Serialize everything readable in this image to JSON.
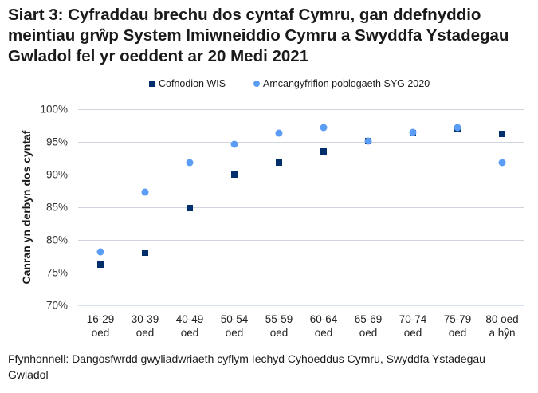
{
  "title": "Siart 3: Cyfraddau brechu dos cyntaf Cymru, gan ddefnyddio meintiau grŵp System Imiwneiddio Cymru a Swyddfa Ystadegau Gwladol fel yr oeddent ar 20 Medi 2021",
  "legend": {
    "series1": "Cofnodion WIS",
    "series2": "Amcangyfrifion poblogaeth SYG 2020"
  },
  "yaxis": {
    "label": "Canran yn derbyn dos cyntaf",
    "ticks": [
      "100%",
      "95%",
      "90%",
      "85%",
      "80%",
      "75%",
      "70%"
    ]
  },
  "xaxis": {
    "ticks": [
      {
        "l1": "16-29",
        "l2": "oed"
      },
      {
        "l1": "30-39",
        "l2": "oed"
      },
      {
        "l1": "40-49",
        "l2": "oed"
      },
      {
        "l1": "50-54",
        "l2": "oed"
      },
      {
        "l1": "55-59",
        "l2": "oed"
      },
      {
        "l1": "60-64",
        "l2": "oed"
      },
      {
        "l1": "65-69",
        "l2": "oed"
      },
      {
        "l1": "70-74",
        "l2": "oed"
      },
      {
        "l1": "75-79",
        "l2": "oed"
      },
      {
        "l1": "80 oed",
        "l2": "a hŷn"
      }
    ]
  },
  "source": "Ffynhonnell: Dangosfwrdd gwyliadwriaeth cyflym Iechyd Cyhoeddus Cymru, Swyddfa Ystadegau Gwladol",
  "colors": {
    "series1": "#002f6c",
    "series2": "#5b9df5",
    "grid": "#d0d4dc"
  },
  "chart_data": {
    "type": "scatter",
    "title": "Siart 3: Cyfraddau brechu dos cyntaf Cymru, gan ddefnyddio meintiau grŵp System Imiwneiddio Cymru a Swyddfa Ystadegau Gwladol fel yr oeddent ar 20 Medi 2021",
    "categories": [
      "16-29 oed",
      "30-39 oed",
      "40-49 oed",
      "50-54 oed",
      "55-59 oed",
      "60-64 oed",
      "65-69 oed",
      "70-74 oed",
      "75-79 oed",
      "80 oed a hŷn"
    ],
    "series": [
      {
        "name": "Cofnodion WIS",
        "marker": "square",
        "values": [
          76.2,
          78.0,
          84.9,
          90.0,
          91.8,
          93.5,
          95.1,
          96.3,
          97.0,
          96.2
        ]
      },
      {
        "name": "Amcangyfrifion poblogaeth SYG 2020",
        "marker": "circle",
        "values": [
          78.2,
          87.3,
          91.8,
          94.6,
          96.3,
          97.2,
          95.1,
          96.5,
          97.2,
          91.8
        ]
      }
    ],
    "xlabel": "",
    "ylabel": "Canran yn derbyn dos cyntaf",
    "ylim": [
      70,
      100
    ],
    "yticks": [
      70,
      75,
      80,
      85,
      90,
      95,
      100
    ],
    "grid": true,
    "legend_position": "top"
  }
}
